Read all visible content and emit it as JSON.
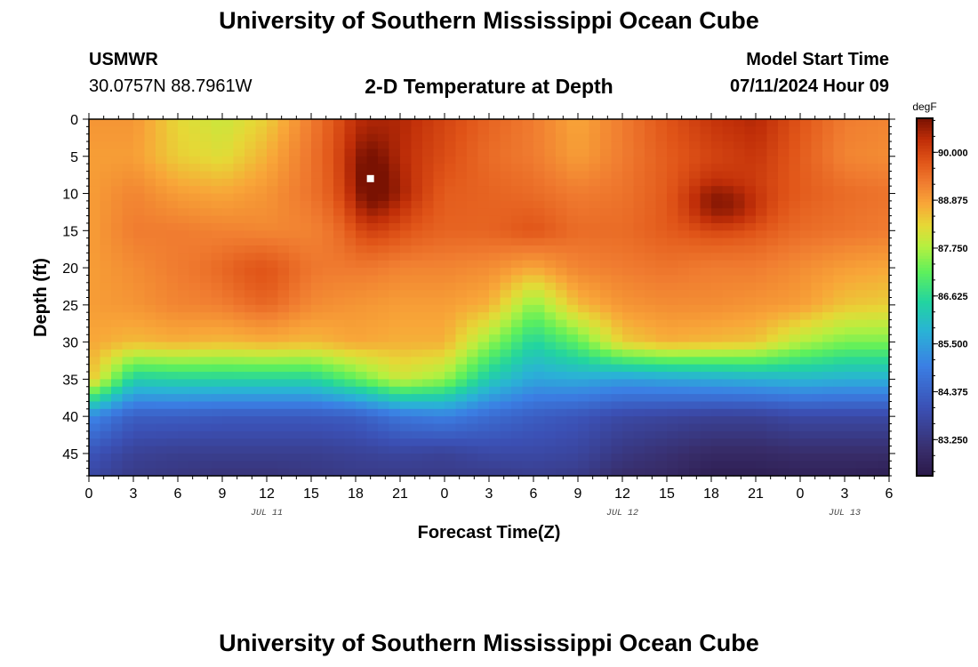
{
  "header": {
    "title": "University of Southern Mississippi Ocean Cube",
    "station": "USMWR",
    "coordinates": "30.0757N  88.7961W",
    "subtitle": "2-D Temperature at Depth",
    "model_start_label": "Model Start Time",
    "model_start_value": "07/11/2024 Hour 09"
  },
  "footer": {
    "title": "University of Southern Mississippi Ocean Cube"
  },
  "chart_data": {
    "type": "heatmap",
    "title": "2-D Temperature at Depth",
    "xlabel": "Forecast Time(Z)",
    "ylabel": "Depth (ft)",
    "x_range": [
      0,
      54
    ],
    "y_range": [
      0,
      48
    ],
    "y_inverted": true,
    "x_tick_labels": [
      "0",
      "3",
      "6",
      "9",
      "12",
      "15",
      "18",
      "21",
      "0",
      "3",
      "6",
      "9",
      "12",
      "15",
      "18",
      "21",
      "0",
      "3",
      "6"
    ],
    "y_ticks": [
      0,
      5,
      10,
      15,
      20,
      25,
      30,
      35,
      40,
      45
    ],
    "date_labels": [
      {
        "label": "JUL 11",
        "x": 12
      },
      {
        "label": "JUL 12",
        "x": 36
      },
      {
        "label": "JUL 13",
        "x": 51
      }
    ],
    "colorbar": {
      "unit": "degF",
      "min": 82.4,
      "max": 90.8,
      "tick_labels": [
        "90.000",
        "88.875",
        "87.750",
        "86.625",
        "85.500",
        "84.375",
        "83.250"
      ],
      "tick_values": [
        90.0,
        88.875,
        87.75,
        86.625,
        85.5,
        84.375,
        83.25
      ]
    },
    "colormap": [
      {
        "v": 82.4,
        "c": "#2a1848"
      },
      {
        "v": 83.0,
        "c": "#382d6a"
      },
      {
        "v": 84.0,
        "c": "#3b50b4"
      },
      {
        "v": 85.0,
        "c": "#3b7fe4"
      },
      {
        "v": 85.8,
        "c": "#2ab2d6"
      },
      {
        "v": 86.5,
        "c": "#22d4a0"
      },
      {
        "v": 87.2,
        "c": "#5ef05c"
      },
      {
        "v": 87.8,
        "c": "#b6f040"
      },
      {
        "v": 88.3,
        "c": "#e6d836"
      },
      {
        "v": 88.8,
        "c": "#f8a638"
      },
      {
        "v": 89.3,
        "c": "#f07c30"
      },
      {
        "v": 89.8,
        "c": "#e05418"
      },
      {
        "v": 90.3,
        "c": "#c02e08"
      },
      {
        "v": 90.8,
        "c": "#7a1202"
      }
    ],
    "times": [
      0,
      3,
      6,
      9,
      12,
      15,
      18,
      21,
      24,
      27,
      30,
      33,
      36,
      39,
      42,
      45,
      48,
      51,
      54
    ],
    "depths": [
      0,
      5,
      10,
      15,
      20,
      25,
      30,
      35,
      40,
      45,
      48
    ],
    "temperature_degF": [
      [
        89.0,
        88.9,
        88.9,
        88.9,
        88.9,
        88.9,
        88.8,
        88.6,
        85.2,
        84.1,
        83.8
      ],
      [
        89.0,
        88.9,
        89.2,
        89.3,
        89.1,
        89.0,
        88.6,
        86.4,
        84.3,
        83.6,
        83.4
      ],
      [
        88.3,
        88.4,
        88.9,
        89.3,
        89.3,
        89.2,
        88.7,
        86.5,
        84.3,
        83.5,
        83.3
      ],
      [
        88.0,
        88.2,
        88.8,
        89.2,
        89.4,
        89.2,
        88.6,
        86.5,
        84.2,
        83.5,
        83.2
      ],
      [
        88.4,
        88.7,
        89.0,
        89.1,
        89.5,
        89.4,
        88.7,
        86.5,
        84.2,
        83.5,
        83.2
      ],
      [
        89.3,
        89.4,
        89.4,
        89.2,
        89.3,
        89.1,
        88.6,
        86.5,
        84.2,
        83.5,
        83.3
      ],
      [
        90.2,
        90.2,
        90.0,
        89.6,
        89.3,
        89.0,
        88.8,
        87.2,
        84.3,
        83.6,
        83.4
      ],
      [
        90.4,
        90.3,
        90.4,
        89.8,
        89.2,
        88.9,
        88.7,
        88.0,
        84.8,
        83.7,
        83.4
      ],
      [
        90.0,
        89.9,
        89.7,
        89.6,
        89.2,
        88.9,
        88.7,
        87.6,
        85.0,
        83.6,
        83.4
      ],
      [
        89.6,
        89.5,
        89.6,
        89.6,
        89.1,
        88.7,
        87.6,
        86.3,
        84.6,
        83.8,
        83.4
      ],
      [
        89.3,
        89.3,
        89.5,
        89.8,
        88.8,
        87.5,
        86.5,
        85.6,
        84.3,
        83.8,
        83.5
      ],
      [
        88.8,
        88.9,
        89.3,
        89.5,
        89.2,
        88.6,
        87.2,
        85.7,
        84.1,
        83.7,
        83.4
      ],
      [
        89.3,
        89.3,
        89.4,
        89.5,
        89.3,
        89.0,
        88.4,
        85.5,
        83.8,
        83.3,
        83.0
      ],
      [
        89.8,
        89.7,
        89.7,
        89.7,
        89.4,
        89.1,
        88.7,
        85.6,
        83.7,
        83.1,
        82.9
      ],
      [
        90.2,
        90.0,
        90.3,
        89.8,
        89.3,
        89.1,
        88.6,
        85.7,
        83.6,
        82.9,
        82.6
      ],
      [
        90.4,
        90.2,
        90.0,
        89.7,
        89.3,
        89.0,
        88.5,
        85.8,
        83.6,
        82.9,
        82.6
      ],
      [
        89.8,
        89.7,
        89.7,
        89.5,
        89.1,
        88.9,
        87.8,
        85.9,
        83.8,
        83.0,
        82.7
      ],
      [
        89.3,
        89.2,
        89.5,
        89.4,
        88.9,
        88.5,
        87.4,
        85.8,
        83.8,
        83.0,
        82.7
      ],
      [
        89.2,
        89.1,
        89.4,
        89.3,
        88.8,
        88.4,
        87.4,
        85.8,
        83.8,
        83.0,
        82.6
      ]
    ],
    "hot_spots": [
      {
        "time": 19,
        "depth": 9,
        "radius_h": 1.6,
        "radius_d": 7,
        "delta": 0.8
      },
      {
        "time": 43,
        "depth": 12,
        "radius_h": 2.6,
        "radius_d": 3,
        "delta": 0.6
      },
      {
        "time": 11.5,
        "depth": 21,
        "radius_h": 3,
        "radius_d": 5,
        "delta": 0.3
      }
    ],
    "marker": {
      "time": 19,
      "depth": 8,
      "color": "#ffffff"
    }
  }
}
